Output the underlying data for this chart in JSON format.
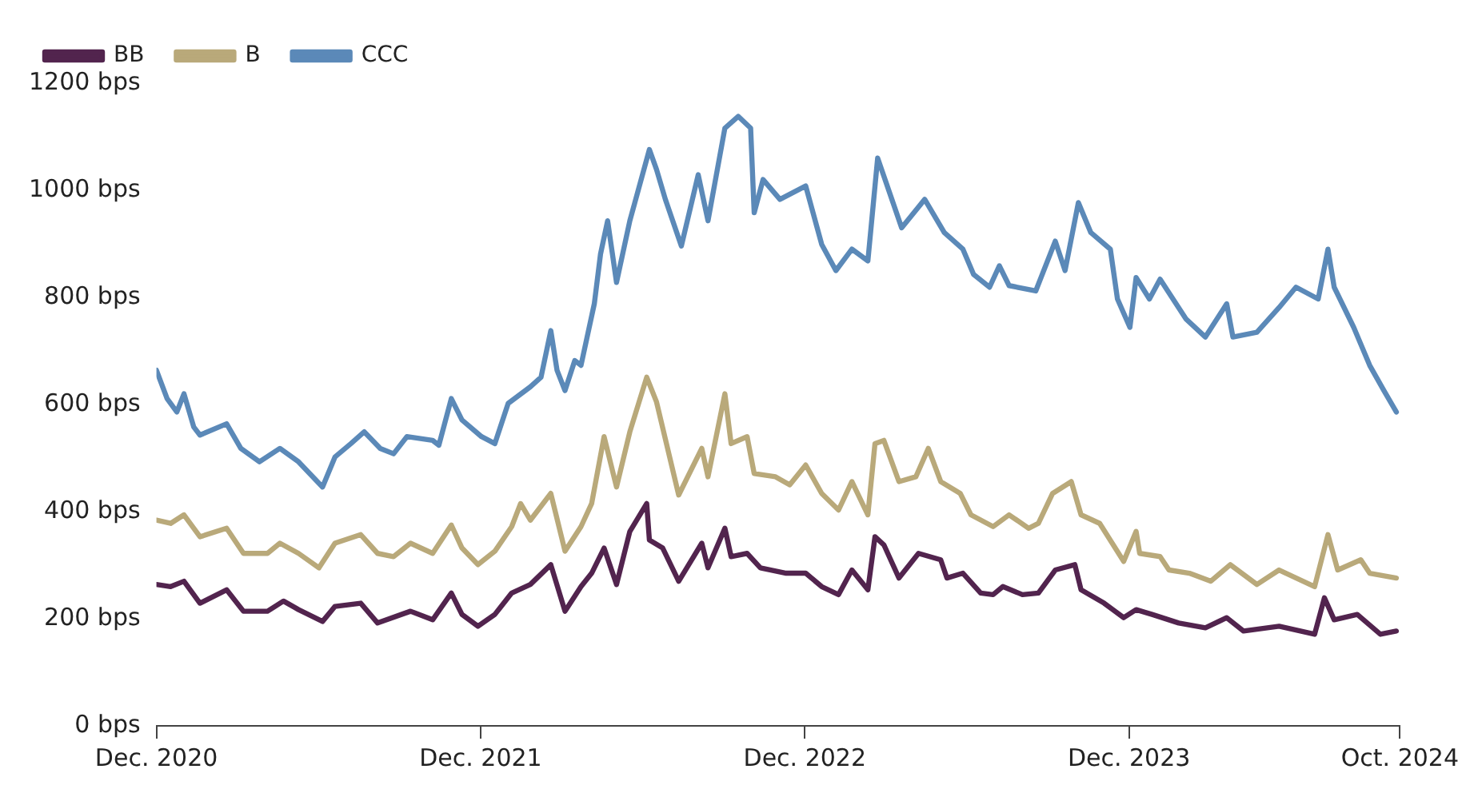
{
  "chart_data": {
    "type": "line",
    "xlim": [
      "2020-12",
      "2024-10"
    ],
    "ylim": [
      0,
      1200
    ],
    "xticks": [
      {
        "value": "2020-12",
        "label": "Dec. 2020"
      },
      {
        "value": "2021-12",
        "label": "Dec. 2021"
      },
      {
        "value": "2022-12",
        "label": "Dec. 2022"
      },
      {
        "value": "2023-12",
        "label": "Dec. 2023"
      },
      {
        "value": "2024-10",
        "label": "Oct. 2024"
      }
    ],
    "yticks": [
      {
        "value": 0,
        "label": "0 bps"
      },
      {
        "value": 200,
        "label": "200 bps"
      },
      {
        "value": 400,
        "label": "400 bps"
      },
      {
        "value": 600,
        "label": "600 bps"
      },
      {
        "value": 800,
        "label": "800 bps"
      },
      {
        "value": 1000,
        "label": "1000 bps"
      },
      {
        "value": 1200,
        "label": "1200 bps"
      }
    ],
    "legend": "top left",
    "marker": "none",
    "line_style": "solid",
    "series": [
      {
        "name": "BB",
        "color": "#52244e",
        "x": [
          "2020-12-01",
          "2020-12-17",
          "2021-01-01",
          "2021-01-19",
          "2021-02-18",
          "2021-03-09",
          "2021-04-05",
          "2021-04-23",
          "2021-05-10",
          "2021-06-06",
          "2021-06-20",
          "2021-07-19",
          "2021-08-07",
          "2021-09-13",
          "2021-10-08",
          "2021-10-29",
          "2021-11-10",
          "2021-11-28",
          "2021-12-17",
          "2022-01-05",
          "2022-01-26",
          "2022-02-18",
          "2022-03-06",
          "2022-03-24",
          "2022-04-05",
          "2022-04-19",
          "2022-05-03",
          "2022-05-18",
          "2022-06-06",
          "2022-06-09",
          "2022-06-24",
          "2022-07-12",
          "2022-08-07",
          "2022-08-14",
          "2022-09-02",
          "2022-09-09",
          "2022-09-27",
          "2022-10-12",
          "2022-11-10",
          "2022-12-02",
          "2022-12-20",
          "2023-01-08",
          "2023-01-23",
          "2023-02-10",
          "2023-02-18",
          "2023-02-28",
          "2023-03-17",
          "2023-04-08",
          "2023-05-03",
          "2023-05-10",
          "2023-05-28",
          "2023-06-17",
          "2023-07-01",
          "2023-07-12",
          "2023-08-03",
          "2023-08-21",
          "2023-09-09",
          "2023-10-01",
          "2023-10-08",
          "2023-11-03",
          "2023-11-25",
          "2023-12-09",
          "2023-12-27",
          "2024-01-26",
          "2024-02-25",
          "2024-03-20",
          "2024-04-08",
          "2024-05-18",
          "2024-06-27",
          "2024-07-08",
          "2024-07-19",
          "2024-08-14",
          "2024-09-09",
          "2024-09-27"
        ],
        "values": [
          264,
          260,
          270,
          229,
          254,
          214,
          214,
          233,
          217,
          195,
          223,
          229,
          192,
          214,
          198,
          248,
          208,
          186,
          208,
          248,
          264,
          301,
          214,
          260,
          285,
          332,
          264,
          363,
          415,
          347,
          332,
          270,
          341,
          295,
          369,
          316,
          322,
          295,
          285,
          285,
          260,
          245,
          291,
          254,
          353,
          338,
          276,
          322,
          310,
          276,
          285,
          248,
          245,
          260,
          245,
          248,
          291,
          301,
          254,
          229,
          202,
          217,
          208,
          192,
          183,
          202,
          177,
          186,
          171,
          239,
          198,
          208,
          171,
          177
        ]
      },
      {
        "name": "B",
        "color": "#b9a97a",
        "x": [
          "2020-12-01",
          "2020-12-17",
          "2021-01-01",
          "2021-01-19",
          "2021-02-18",
          "2021-03-09",
          "2021-04-05",
          "2021-04-19",
          "2021-05-10",
          "2021-06-02",
          "2021-06-20",
          "2021-07-19",
          "2021-08-07",
          "2021-08-25",
          "2021-09-13",
          "2021-10-08",
          "2021-10-29",
          "2021-11-10",
          "2021-11-28",
          "2021-12-17",
          "2022-01-05",
          "2022-01-15",
          "2022-01-26",
          "2022-02-18",
          "2022-03-06",
          "2022-03-24",
          "2022-04-05",
          "2022-04-19",
          "2022-05-03",
          "2022-05-18",
          "2022-06-06",
          "2022-06-17",
          "2022-07-12",
          "2022-08-07",
          "2022-08-14",
          "2022-09-02",
          "2022-09-09",
          "2022-09-27",
          "2022-10-05",
          "2022-10-29",
          "2022-11-14",
          "2022-12-02",
          "2022-12-20",
          "2023-01-08",
          "2023-01-23",
          "2023-02-10",
          "2023-02-18",
          "2023-02-28",
          "2023-03-17",
          "2023-04-05",
          "2023-04-19",
          "2023-05-03",
          "2023-05-25",
          "2023-06-06",
          "2023-07-01",
          "2023-07-19",
          "2023-08-10",
          "2023-08-21",
          "2023-09-06",
          "2023-09-27",
          "2023-10-08",
          "2023-10-29",
          "2023-11-25",
          "2023-12-09",
          "2023-12-13",
          "2024-01-05",
          "2024-01-15",
          "2024-02-07",
          "2024-03-02",
          "2024-03-24",
          "2024-04-23",
          "2024-05-18",
          "2024-06-27",
          "2024-07-12",
          "2024-07-23",
          "2024-08-18",
          "2024-08-28",
          "2024-09-27"
        ],
        "values": [
          384,
          378,
          394,
          353,
          369,
          322,
          322,
          341,
          322,
          295,
          341,
          357,
          322,
          316,
          341,
          322,
          375,
          332,
          301,
          326,
          372,
          415,
          384,
          434,
          326,
          372,
          415,
          540,
          446,
          549,
          651,
          605,
          431,
          518,
          465,
          620,
          527,
          540,
          471,
          465,
          450,
          487,
          434,
          403,
          456,
          394,
          527,
          533,
          456,
          465,
          518,
          456,
          434,
          394,
          372,
          394,
          369,
          378,
          434,
          456,
          394,
          378,
          307,
          363,
          322,
          316,
          291,
          285,
          270,
          301,
          264,
          291,
          260,
          357,
          291,
          310,
          285,
          276
        ]
      },
      {
        "name": "CCC",
        "color": "#5b89b8",
        "x": [
          "2020-12-01",
          "2020-12-13",
          "2020-12-24",
          "2021-01-01",
          "2021-01-12",
          "2021-01-19",
          "2021-02-18",
          "2021-03-06",
          "2021-03-27",
          "2021-04-19",
          "2021-05-10",
          "2021-06-06",
          "2021-06-20",
          "2021-07-08",
          "2021-07-23",
          "2021-08-10",
          "2021-08-25",
          "2021-09-09",
          "2021-10-08",
          "2021-10-15",
          "2021-10-29",
          "2021-11-10",
          "2021-12-02",
          "2021-12-17",
          "2022-01-01",
          "2022-01-26",
          "2022-02-07",
          "2022-02-18",
          "2022-02-25",
          "2022-03-06",
          "2022-03-17",
          "2022-03-24",
          "2022-04-08",
          "2022-04-15",
          "2022-04-23",
          "2022-05-03",
          "2022-05-18",
          "2022-06-09",
          "2022-06-17",
          "2022-06-27",
          "2022-07-15",
          "2022-08-03",
          "2022-08-14",
          "2022-09-02",
          "2022-09-17",
          "2022-10-01",
          "2022-10-05",
          "2022-10-15",
          "2022-11-03",
          "2022-12-02",
          "2022-12-20",
          "2023-01-05",
          "2023-01-23",
          "2023-02-10",
          "2023-02-21",
          "2023-03-09",
          "2023-03-20",
          "2023-04-15",
          "2023-05-07",
          "2023-05-28",
          "2023-06-09",
          "2023-06-27",
          "2023-07-08",
          "2023-07-19",
          "2023-08-18",
          "2023-09-09",
          "2023-09-20",
          "2023-10-05",
          "2023-10-19",
          "2023-11-10",
          "2023-11-18",
          "2023-12-02",
          "2023-12-09",
          "2023-12-24",
          "2024-01-05",
          "2024-02-03",
          "2024-02-25",
          "2024-03-20",
          "2024-03-27",
          "2024-04-23",
          "2024-05-18",
          "2024-06-06",
          "2024-07-01",
          "2024-07-12",
          "2024-07-19",
          "2024-08-10",
          "2024-08-28",
          "2024-09-13",
          "2024-09-27"
        ],
        "values": [
          664,
          611,
          586,
          620,
          558,
          543,
          564,
          518,
          493,
          518,
          493,
          446,
          502,
          527,
          549,
          518,
          508,
          540,
          533,
          524,
          611,
          571,
          540,
          527,
          602,
          633,
          651,
          738,
          664,
          626,
          682,
          673,
          788,
          881,
          943,
          828,
          943,
          1076,
          1039,
          983,
          896,
          1029,
          943,
          1116,
          1138,
          1116,
          958,
          1020,
          983,
          1008,
          899,
          850,
          890,
          868,
          1060,
          983,
          930,
          983,
          921,
          890,
          843,
          819,
          859,
          822,
          812,
          905,
          850,
          977,
          921,
          890,
          797,
          744,
          837,
          797,
          834,
          760,
          726,
          788,
          726,
          735,
          781,
          819,
          797,
          890,
          819,
          744,
          673,
          626,
          586
        ]
      }
    ]
  }
}
